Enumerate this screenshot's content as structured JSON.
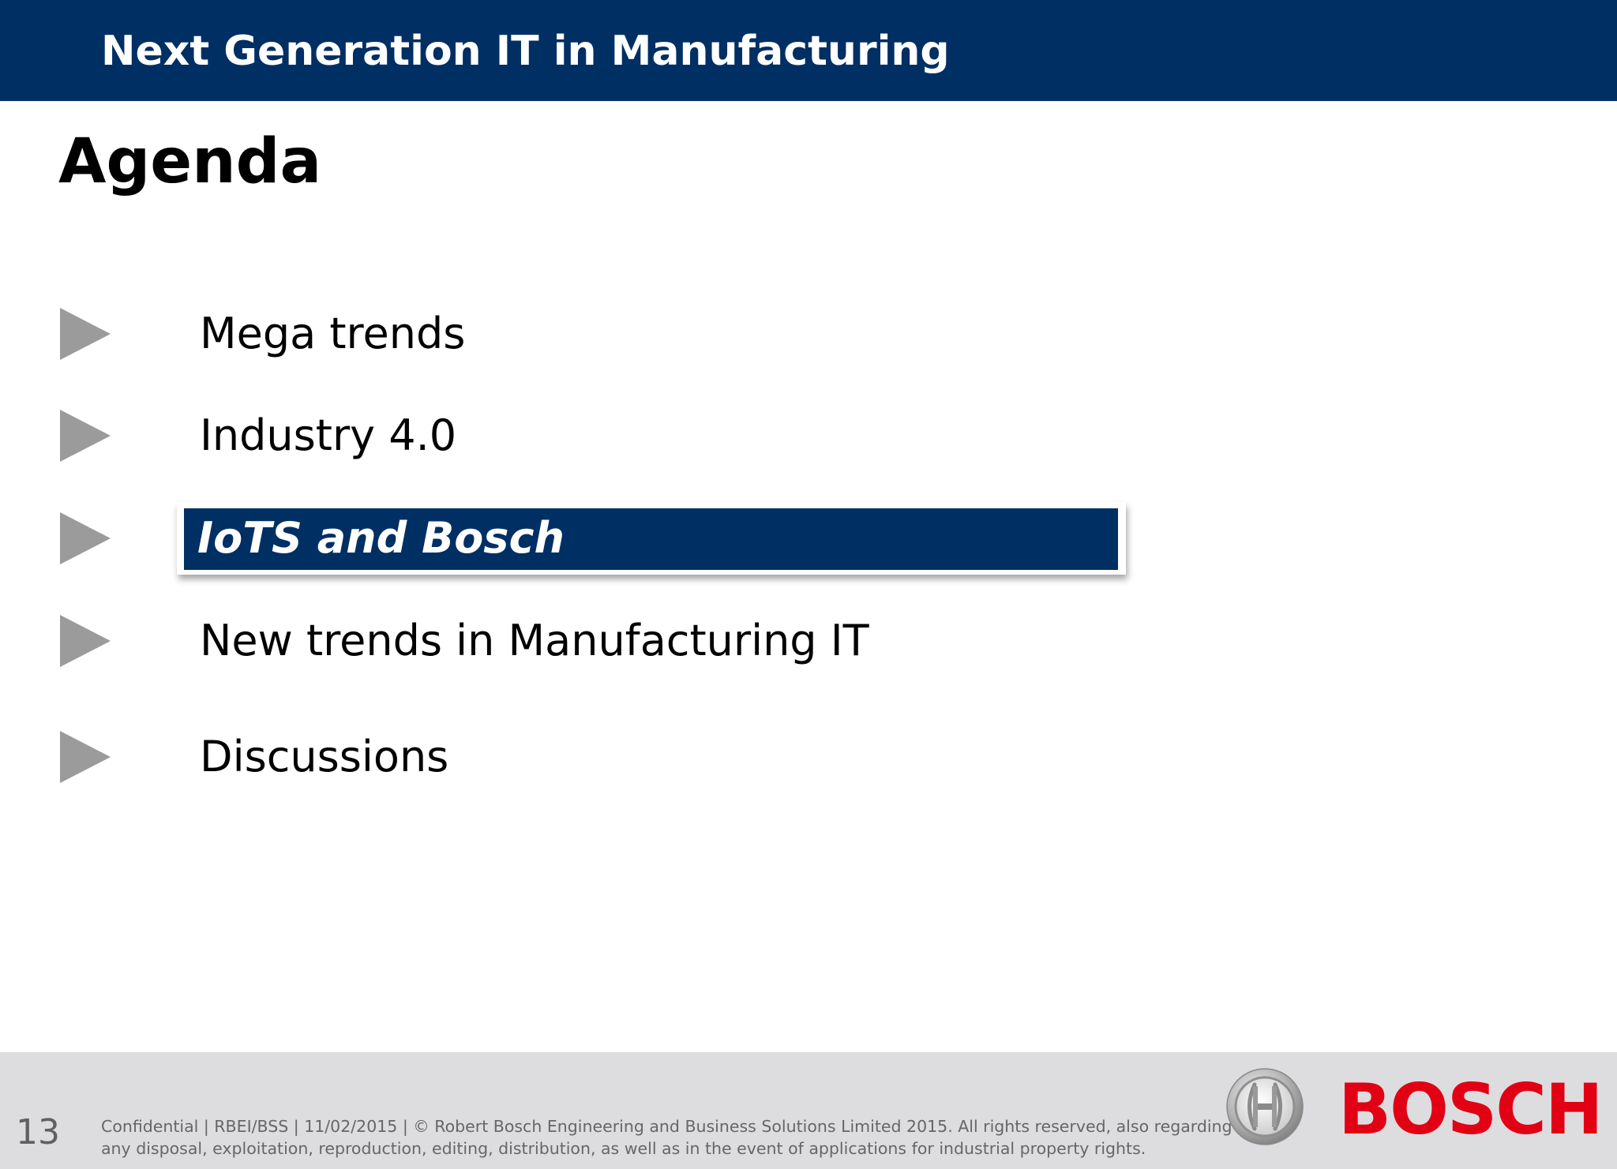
{
  "header": {
    "title": "Next Generation IT in Manufacturing"
  },
  "slide": {
    "title": "Agenda"
  },
  "agenda": {
    "items": [
      {
        "label": "Mega trends",
        "active": false
      },
      {
        "label": "Industry 4.0",
        "active": false
      },
      {
        "label": "IoTS and Bosch",
        "active": true
      },
      {
        "label": "New trends in Manufacturing IT",
        "active": false
      },
      {
        "label": "Discussions",
        "active": false
      }
    ],
    "bullet_icon": "triangle-right-icon",
    "bullet_color": "#9b9b9b",
    "active_color": "#002f64"
  },
  "footer": {
    "page_number": "13",
    "line1": "Confidential  | RBEI/BSS | 11/02/2015 | ©  Robert Bosch Engineering and Business Solutions Limited 2015. All rights reserved, also regarding",
    "line2": "any disposal, exploitation, reproduction, editing, distribution, as well as in the event of applications for industrial property rights."
  },
  "brand": {
    "wordmark": "BOSCH",
    "logo_icon": "bosch-armature-icon",
    "primary_color": "#002f64",
    "wordmark_color": "#e20015"
  }
}
